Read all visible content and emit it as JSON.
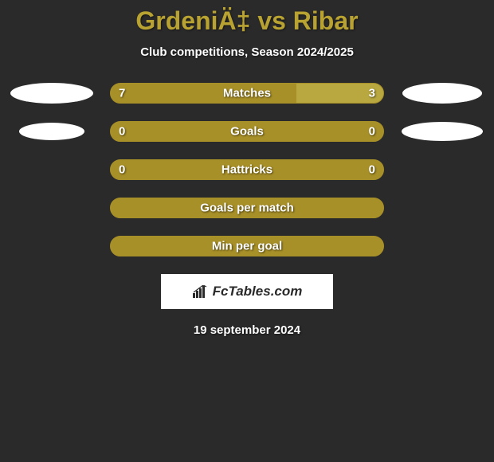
{
  "title": "GrdeniÄ‡ vs Ribar",
  "subtitle": "Club competitions, Season 2024/2025",
  "date": "19 september 2024",
  "logo_text": "FcTables.com",
  "colors": {
    "background": "#2a2a2a",
    "accent": "#a89028",
    "accent_light": "#b8a232",
    "ellipse": "#ffffff",
    "text": "#ffffff",
    "logo_bg": "#ffffff",
    "logo_text": "#2a2a2a"
  },
  "stats": [
    {
      "label": "Matches",
      "left_value": "7",
      "right_value": "3",
      "left_width_pct": 68,
      "right_width_pct": 32,
      "left_color": "#a89028",
      "right_color": "#b8a83f",
      "show_values": true,
      "show_ellipses": true,
      "ellipse_left_w": 104,
      "ellipse_left_h": 26,
      "ellipse_right_w": 100,
      "ellipse_right_h": 26
    },
    {
      "label": "Goals",
      "left_value": "0",
      "right_value": "0",
      "left_width_pct": 50,
      "right_width_pct": 50,
      "left_color": "#a89028",
      "right_color": "#a89028",
      "show_values": true,
      "show_ellipses": true,
      "ellipse_left_w": 82,
      "ellipse_left_h": 22,
      "ellipse_right_w": 102,
      "ellipse_right_h": 24
    },
    {
      "label": "Hattricks",
      "left_value": "0",
      "right_value": "0",
      "left_width_pct": 50,
      "right_width_pct": 50,
      "left_color": "#a89028",
      "right_color": "#a89028",
      "show_values": true,
      "show_ellipses": false
    },
    {
      "label": "Goals per match",
      "left_value": "",
      "right_value": "",
      "left_width_pct": 100,
      "right_width_pct": 0,
      "left_color": "#a89028",
      "right_color": "#a89028",
      "show_values": false,
      "show_ellipses": false
    },
    {
      "label": "Min per goal",
      "left_value": "",
      "right_value": "",
      "left_width_pct": 100,
      "right_width_pct": 0,
      "left_color": "#a89028",
      "right_color": "#a89028",
      "show_values": false,
      "show_ellipses": false
    }
  ]
}
